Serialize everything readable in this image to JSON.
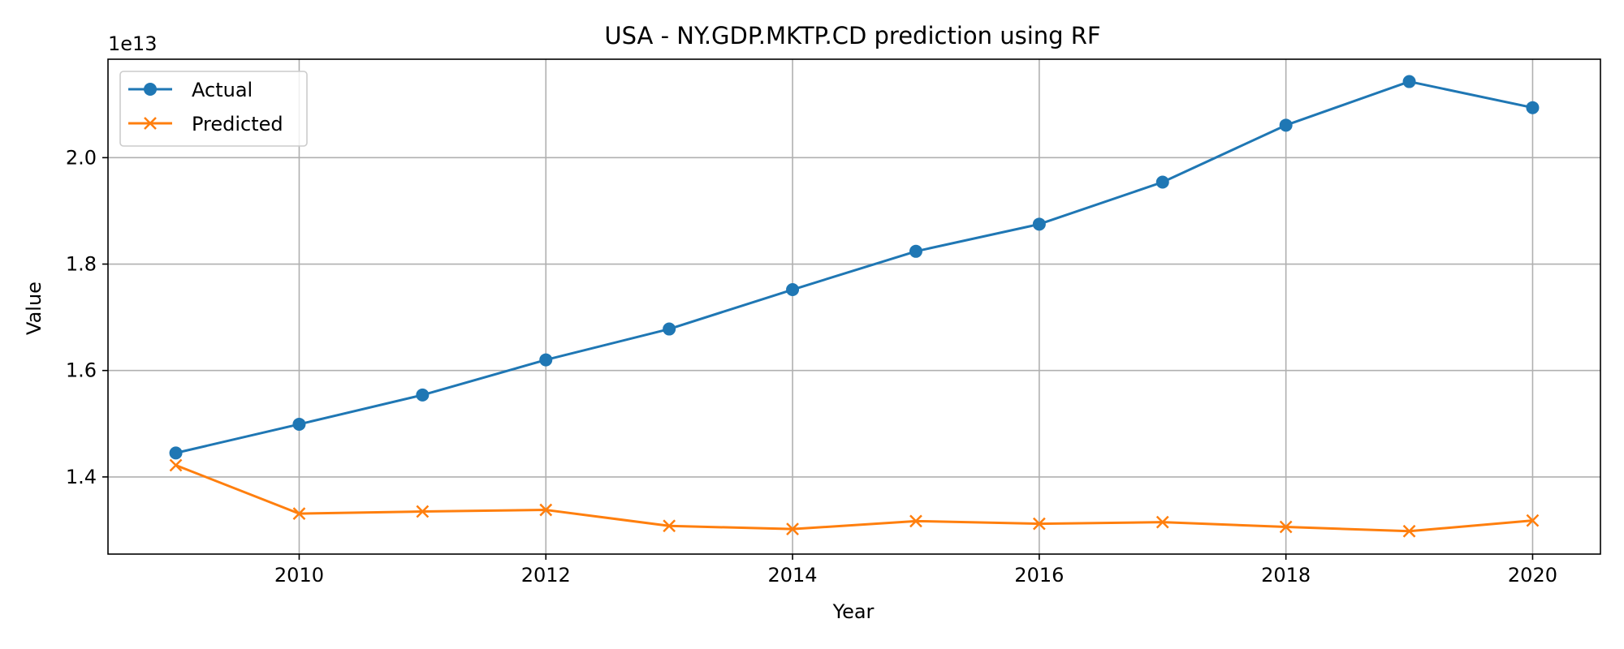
{
  "chart_data": {
    "type": "line",
    "title": "USA - NY.GDP.MKTP.CD prediction using RF",
    "xlabel": "Year",
    "ylabel": "Value",
    "y_offset_label": "1e13",
    "x": [
      2009,
      2010,
      2011,
      2012,
      2013,
      2014,
      2015,
      2016,
      2017,
      2018,
      2019,
      2020
    ],
    "xlim": [
      2008.45,
      2020.55
    ],
    "ylim": [
      12550000000000.0,
      21850000000000.0
    ],
    "x_ticks": [
      2010,
      2012,
      2014,
      2016,
      2018,
      2020
    ],
    "x_tick_labels": [
      "2010",
      "2012",
      "2014",
      "2016",
      "2018",
      "2020"
    ],
    "y_ticks": [
      14000000000000.0,
      16000000000000.0,
      18000000000000.0,
      20000000000000.0
    ],
    "y_tick_labels": [
      "1.4",
      "1.6",
      "1.8",
      "2.0"
    ],
    "grid": true,
    "legend_position": "top-left",
    "series": [
      {
        "name": "Actual",
        "color": "#1f77b4",
        "marker": "circle",
        "values": [
          14450000000000.0,
          14990000000000.0,
          15540000000000.0,
          16200000000000.0,
          16780000000000.0,
          17520000000000.0,
          18240000000000.0,
          18750000000000.0,
          19540000000000.0,
          20610000000000.0,
          21430000000000.0,
          20940000000000.0
        ]
      },
      {
        "name": "Predicted",
        "color": "#ff7f0e",
        "marker": "x",
        "values": [
          14220000000000.0,
          13310000000000.0,
          13350000000000.0,
          13380000000000.0,
          13080000000000.0,
          13020000000000.0,
          13170000000000.0,
          13120000000000.0,
          13150000000000.0,
          13060000000000.0,
          12980000000000.0,
          13180000000000.0
        ]
      }
    ]
  }
}
